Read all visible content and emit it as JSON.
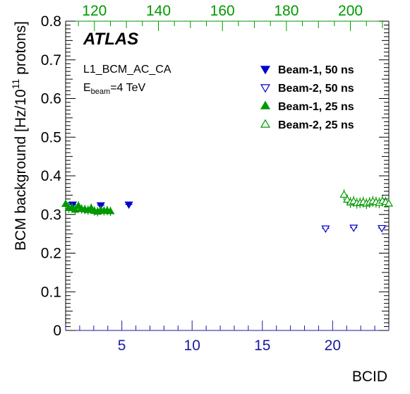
{
  "chart_data": {
    "type": "scatter",
    "title": "",
    "experiment_label": "ATLAS",
    "trigger_label": "L1_BCM_AC_CA",
    "beam_energy_label_main": "E",
    "beam_energy_label_sub": "beam",
    "beam_energy_label_rest": "=4 TeV",
    "ylabel_main": "BCM background [Hz/10",
    "ylabel_sup": "11",
    "ylabel_end": " protons]",
    "xlabel": "BCID",
    "xlim": [
      1,
      24
    ],
    "ylim": [
      0,
      0.8
    ],
    "x_ticks": [
      5,
      10,
      15,
      20
    ],
    "x_tick_labels": [
      "5",
      "10",
      "15",
      "20"
    ],
    "y_ticks": [
      0,
      0.1,
      0.2,
      0.3,
      0.4,
      0.5,
      0.6,
      0.7,
      0.8
    ],
    "y_tick_labels": [
      "0",
      "0.1",
      "0.2",
      "0.3",
      "0.4",
      "0.5",
      "0.6",
      "0.7",
      "0.8"
    ],
    "top_axis": {
      "xlim": [
        111,
        212
      ],
      "ticks": [
        120,
        140,
        160,
        180,
        200
      ],
      "tick_labels": [
        "120",
        "140",
        "160",
        "180",
        "200"
      ],
      "color": "#009900"
    },
    "legend_position": "top-right",
    "series": [
      {
        "name": "Beam-1, 50 ns",
        "axis": "bottom",
        "marker": "filled-down-triangle",
        "color": "#0000cc",
        "points": [
          {
            "x": 1.5,
            "y": 0.326
          },
          {
            "x": 3.5,
            "y": 0.324
          },
          {
            "x": 5.5,
            "y": 0.326
          }
        ]
      },
      {
        "name": "Beam-2, 50 ns",
        "axis": "bottom",
        "marker": "open-down-triangle",
        "color": "#0000cc",
        "points": [
          {
            "x": 19.5,
            "y": 0.264
          },
          {
            "x": 21.5,
            "y": 0.266
          },
          {
            "x": 23.5,
            "y": 0.265
          }
        ]
      },
      {
        "name": "Beam-1, 25 ns",
        "axis": "top",
        "marker": "filled-up-triangle",
        "color": "#009900",
        "points": [
          {
            "x": 111,
            "y": 0.327,
            "err": 0.01
          },
          {
            "x": 112,
            "y": 0.316,
            "err": 0.012
          },
          {
            "x": 113,
            "y": 0.318,
            "err": 0.012
          },
          {
            "x": 114,
            "y": 0.312,
            "err": 0.012
          },
          {
            "x": 115,
            "y": 0.322,
            "err": 0.012
          },
          {
            "x": 116,
            "y": 0.314,
            "err": 0.012
          },
          {
            "x": 117,
            "y": 0.313,
            "err": 0.012
          },
          {
            "x": 118,
            "y": 0.311,
            "err": 0.012
          },
          {
            "x": 119,
            "y": 0.316,
            "err": 0.012
          },
          {
            "x": 120,
            "y": 0.309,
            "err": 0.012
          },
          {
            "x": 121,
            "y": 0.307,
            "err": 0.012
          },
          {
            "x": 122,
            "y": 0.311,
            "err": 0.012
          },
          {
            "x": 123,
            "y": 0.309,
            "err": 0.012
          },
          {
            "x": 124,
            "y": 0.31,
            "err": 0.012
          },
          {
            "x": 125,
            "y": 0.308,
            "err": 0.012
          }
        ]
      },
      {
        "name": "Beam-2, 25 ns",
        "axis": "top",
        "marker": "open-up-triangle",
        "color": "#009900",
        "points": [
          {
            "x": 198,
            "y": 0.351,
            "err": 0.014
          },
          {
            "x": 199,
            "y": 0.338,
            "err": 0.014
          },
          {
            "x": 200,
            "y": 0.331,
            "err": 0.014
          },
          {
            "x": 201,
            "y": 0.334,
            "err": 0.014
          },
          {
            "x": 202,
            "y": 0.329,
            "err": 0.014
          },
          {
            "x": 203,
            "y": 0.33,
            "err": 0.014
          },
          {
            "x": 204,
            "y": 0.332,
            "err": 0.014
          },
          {
            "x": 205,
            "y": 0.328,
            "err": 0.014
          },
          {
            "x": 206,
            "y": 0.331,
            "err": 0.014
          },
          {
            "x": 207,
            "y": 0.334,
            "err": 0.014
          },
          {
            "x": 208,
            "y": 0.332,
            "err": 0.014
          },
          {
            "x": 209,
            "y": 0.33,
            "err": 0.014
          },
          {
            "x": 210,
            "y": 0.335,
            "err": 0.014
          },
          {
            "x": 211,
            "y": 0.332,
            "err": 0.014
          },
          {
            "x": 212,
            "y": 0.328,
            "err": 0.014
          }
        ]
      }
    ]
  }
}
